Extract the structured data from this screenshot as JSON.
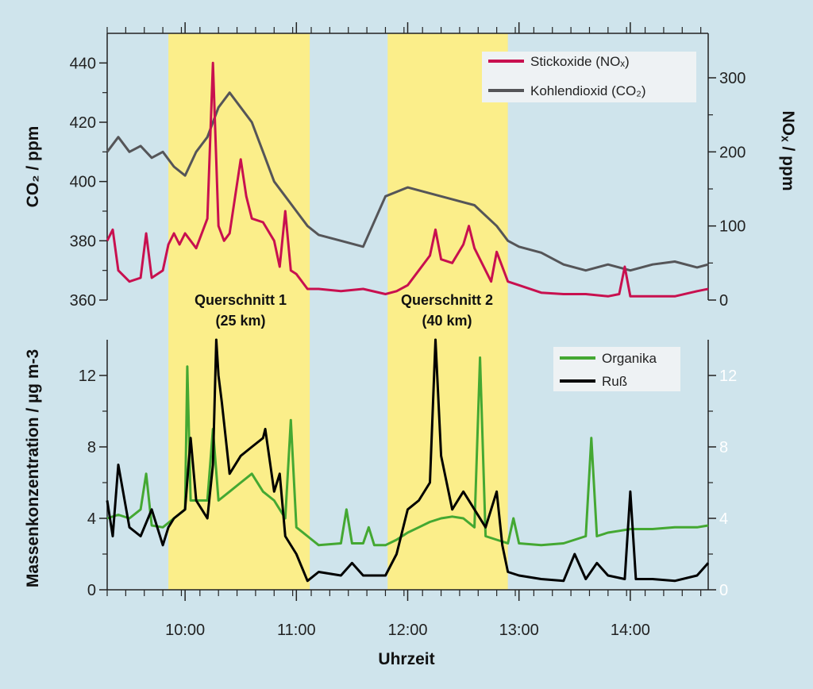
{
  "colors": {
    "background": "#cfe4ec",
    "band": "#fbee8a",
    "co2": "#555558",
    "nox": "#c8104f",
    "organika": "#44a832",
    "russ": "#000000",
    "legend_bg": "#eef2f4"
  },
  "chart_data": [
    {
      "type": "line",
      "panel": "top",
      "xlabel": "",
      "ylabel_left": "CO₂ / ppm",
      "ylabel_right": "NOₓ / ppm",
      "x_range": [
        9.3,
        14.7
      ],
      "ylim_left": [
        360,
        450
      ],
      "ylim_right": [
        0,
        360
      ],
      "yticks_left": [
        360,
        380,
        400,
        420,
        440
      ],
      "yticks_right": [
        0,
        100,
        200,
        300
      ],
      "legend_position": "top-right",
      "shaded_bands": [
        {
          "from": 9.85,
          "to": 11.12,
          "label": "Querschnitt 1",
          "sublabel": "(25 km)"
        },
        {
          "from": 11.82,
          "to": 12.9,
          "label": "Querschnitt 2",
          "sublabel": "(40 km)"
        }
      ],
      "series": [
        {
          "name": "Stickoxide (NOₓ)",
          "axis": "right",
          "x": [
            9.3,
            9.35,
            9.4,
            9.5,
            9.6,
            9.65,
            9.7,
            9.8,
            9.85,
            9.9,
            9.95,
            10.0,
            10.1,
            10.2,
            10.25,
            10.3,
            10.35,
            10.4,
            10.5,
            10.55,
            10.6,
            10.7,
            10.8,
            10.85,
            10.9,
            10.95,
            11.0,
            11.1,
            11.2,
            11.4,
            11.6,
            11.8,
            11.9,
            12.0,
            12.1,
            12.2,
            12.25,
            12.3,
            12.4,
            12.5,
            12.55,
            12.6,
            12.7,
            12.75,
            12.8,
            12.9,
            13.0,
            13.2,
            13.4,
            13.6,
            13.8,
            13.9,
            13.95,
            14.0,
            14.2,
            14.4,
            14.6,
            14.7
          ],
          "values": [
            80,
            95,
            40,
            25,
            30,
            90,
            30,
            40,
            75,
            90,
            75,
            90,
            70,
            110,
            320,
            100,
            80,
            90,
            190,
            140,
            110,
            105,
            80,
            45,
            120,
            40,
            35,
            15,
            15,
            12,
            15,
            8,
            12,
            20,
            40,
            60,
            95,
            55,
            50,
            75,
            100,
            70,
            40,
            25,
            65,
            25,
            20,
            10,
            8,
            8,
            5,
            8,
            45,
            5,
            5,
            5,
            12,
            15
          ]
        },
        {
          "name": "Kohlendioxid (CO₂)",
          "axis": "left",
          "x": [
            9.3,
            9.4,
            9.5,
            9.6,
            9.7,
            9.8,
            9.9,
            10.0,
            10.1,
            10.2,
            10.3,
            10.4,
            10.5,
            10.6,
            10.7,
            10.8,
            10.9,
            11.0,
            11.1,
            11.2,
            11.4,
            11.6,
            11.8,
            12.0,
            12.2,
            12.4,
            12.6,
            12.8,
            12.9,
            13.0,
            13.2,
            13.4,
            13.6,
            13.8,
            14.0,
            14.2,
            14.4,
            14.6,
            14.7
          ],
          "values": [
            410,
            415,
            410,
            412,
            408,
            410,
            405,
            402,
            410,
            415,
            425,
            430,
            425,
            420,
            410,
            400,
            395,
            390,
            385,
            382,
            380,
            378,
            395,
            398,
            396,
            394,
            392,
            385,
            380,
            378,
            376,
            372,
            370,
            372,
            370,
            372,
            373,
            371,
            372
          ]
        }
      ],
      "x_ticks_hours": []
    },
    {
      "type": "line",
      "panel": "bottom",
      "xlabel": "Uhrzeit",
      "ylabel_left": "Massenkonzentration / µg m-3",
      "ylabel_right": "",
      "x_range": [
        9.3,
        14.7
      ],
      "ylim_left": [
        0,
        14
      ],
      "ylim_right": [
        0,
        14
      ],
      "yticks_left": [
        0,
        4,
        8,
        12
      ],
      "yticks_right": [
        0,
        4,
        8,
        12
      ],
      "legend_position": "top-right",
      "x_tick_labels": [
        "10:00",
        "11:00",
        "12:00",
        "13:00",
        "14:00"
      ],
      "x_tick_values": [
        10,
        11,
        12,
        13,
        14
      ],
      "series": [
        {
          "name": "Organika",
          "x": [
            9.3,
            9.4,
            9.5,
            9.6,
            9.65,
            9.7,
            9.8,
            9.9,
            10.0,
            10.02,
            10.05,
            10.1,
            10.2,
            10.25,
            10.3,
            10.4,
            10.5,
            10.6,
            10.7,
            10.8,
            10.9,
            10.95,
            11.0,
            11.1,
            11.2,
            11.4,
            11.45,
            11.5,
            11.6,
            11.65,
            11.7,
            11.8,
            11.9,
            12.0,
            12.1,
            12.2,
            12.3,
            12.4,
            12.5,
            12.6,
            12.65,
            12.7,
            12.8,
            12.9,
            12.95,
            13.0,
            13.2,
            13.4,
            13.6,
            13.65,
            13.7,
            13.8,
            13.9,
            14.0,
            14.2,
            14.4,
            14.6,
            14.7
          ],
          "values": [
            4.0,
            4.2,
            4.0,
            4.5,
            6.5,
            3.6,
            3.5,
            4.0,
            4.5,
            12.5,
            5.0,
            5.0,
            5.0,
            9.0,
            5.0,
            5.5,
            6.0,
            6.5,
            5.5,
            5.0,
            4.0,
            9.5,
            3.5,
            3.0,
            2.5,
            2.6,
            4.5,
            2.6,
            2.6,
            3.5,
            2.5,
            2.5,
            2.8,
            3.2,
            3.5,
            3.8,
            4.0,
            4.1,
            4.0,
            3.5,
            13.0,
            3.0,
            2.8,
            2.6,
            4.0,
            2.6,
            2.5,
            2.6,
            3.0,
            8.5,
            3.0,
            3.2,
            3.3,
            3.4,
            3.4,
            3.5,
            3.5,
            3.6
          ]
        },
        {
          "name": "Ruß",
          "x": [
            9.3,
            9.35,
            9.4,
            9.5,
            9.6,
            9.7,
            9.8,
            9.85,
            9.9,
            10.0,
            10.05,
            10.1,
            10.2,
            10.25,
            10.28,
            10.3,
            10.33,
            10.4,
            10.5,
            10.6,
            10.7,
            10.72,
            10.8,
            10.85,
            10.9,
            11.0,
            11.1,
            11.2,
            11.4,
            11.5,
            11.6,
            11.8,
            11.9,
            12.0,
            12.1,
            12.2,
            12.25,
            12.3,
            12.4,
            12.5,
            12.6,
            12.7,
            12.8,
            12.85,
            12.9,
            13.0,
            13.2,
            13.4,
            13.5,
            13.6,
            13.7,
            13.8,
            13.95,
            14.0,
            14.05,
            14.2,
            14.4,
            14.6,
            14.7
          ],
          "values": [
            5.0,
            3.0,
            7.0,
            3.5,
            3.0,
            4.5,
            2.5,
            3.5,
            4.0,
            4.5,
            8.5,
            5.0,
            4.0,
            7.0,
            14.0,
            12.0,
            10.5,
            6.5,
            7.5,
            8.0,
            8.5,
            9.0,
            5.5,
            6.5,
            3.0,
            2.0,
            0.5,
            1.0,
            0.8,
            1.5,
            0.8,
            0.8,
            2.0,
            4.5,
            5.0,
            6.0,
            14.0,
            7.5,
            4.5,
            5.5,
            4.5,
            3.5,
            5.5,
            2.5,
            1.0,
            0.8,
            0.6,
            0.5,
            2.0,
            0.6,
            1.5,
            0.8,
            0.6,
            5.5,
            0.6,
            0.6,
            0.5,
            0.8,
            1.5
          ]
        }
      ]
    }
  ]
}
